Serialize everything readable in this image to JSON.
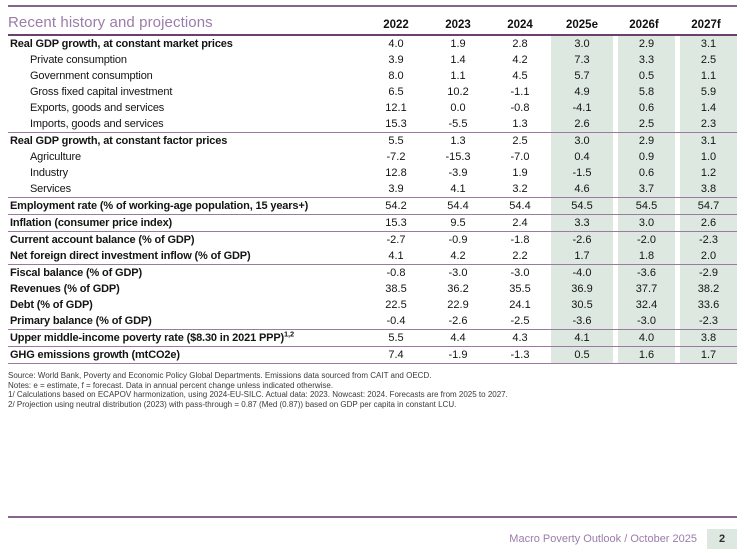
{
  "page": {
    "title": "Recent history and projections",
    "footer_text": "Macro Poverty Outlook / October 2025",
    "page_number": "2"
  },
  "colors": {
    "accent_purple": "#9b7caa",
    "rule_purple": "#86648c",
    "forecast_green": "#dce8e0"
  },
  "table": {
    "columns": [
      "2022",
      "2023",
      "2024",
      "2025e",
      "2026f",
      "2027f"
    ],
    "forecast_columns_start_index": 3,
    "rows": [
      {
        "label": "Real GDP growth, at constant market prices",
        "bold": true,
        "indent": false,
        "sep": false,
        "values": [
          "4.0",
          "1.9",
          "2.8",
          "3.0",
          "2.9",
          "3.1"
        ]
      },
      {
        "label": "Private consumption",
        "bold": false,
        "indent": true,
        "sep": false,
        "values": [
          "3.9",
          "1.4",
          "4.2",
          "7.3",
          "3.3",
          "2.5"
        ]
      },
      {
        "label": "Government consumption",
        "bold": false,
        "indent": true,
        "sep": false,
        "values": [
          "8.0",
          "1.1",
          "4.5",
          "5.7",
          "0.5",
          "1.1"
        ]
      },
      {
        "label": "Gross fixed capital investment",
        "bold": false,
        "indent": true,
        "sep": false,
        "values": [
          "6.5",
          "10.2",
          "-1.1",
          "4.9",
          "5.8",
          "5.9"
        ]
      },
      {
        "label": "Exports, goods and services",
        "bold": false,
        "indent": true,
        "sep": false,
        "values": [
          "12.1",
          "0.0",
          "-0.8",
          "-4.1",
          "0.6",
          "1.4"
        ]
      },
      {
        "label": "Imports, goods and services",
        "bold": false,
        "indent": true,
        "sep": false,
        "values": [
          "15.3",
          "-5.5",
          "1.3",
          "2.6",
          "2.5",
          "2.3"
        ]
      },
      {
        "label": "Real GDP growth, at constant factor prices",
        "bold": true,
        "indent": false,
        "sep": true,
        "values": [
          "5.5",
          "1.3",
          "2.5",
          "3.0",
          "2.9",
          "3.1"
        ]
      },
      {
        "label": "Agriculture",
        "bold": false,
        "indent": true,
        "sep": false,
        "values": [
          "-7.2",
          "-15.3",
          "-7.0",
          "0.4",
          "0.9",
          "1.0"
        ]
      },
      {
        "label": "Industry",
        "bold": false,
        "indent": true,
        "sep": false,
        "values": [
          "12.8",
          "-3.9",
          "1.9",
          "-1.5",
          "0.6",
          "1.2"
        ]
      },
      {
        "label": "Services",
        "bold": false,
        "indent": true,
        "sep": false,
        "values": [
          "3.9",
          "4.1",
          "3.2",
          "4.6",
          "3.7",
          "3.8"
        ]
      },
      {
        "label": "Employment rate (% of working-age population, 15 years+)",
        "bold": true,
        "indent": false,
        "sep": true,
        "values": [
          "54.2",
          "54.4",
          "54.4",
          "54.5",
          "54.5",
          "54.7"
        ]
      },
      {
        "label": "Inflation (consumer price index)",
        "bold": true,
        "indent": false,
        "sep": true,
        "values": [
          "15.3",
          "9.5",
          "2.4",
          "3.3",
          "3.0",
          "2.6"
        ]
      },
      {
        "label": "Current account balance (% of GDP)",
        "bold": true,
        "indent": false,
        "sep": true,
        "values": [
          "-2.7",
          "-0.9",
          "-1.8",
          "-2.6",
          "-2.0",
          "-2.3"
        ]
      },
      {
        "label": "Net foreign direct investment inflow (% of GDP)",
        "bold": true,
        "indent": false,
        "sep": false,
        "values": [
          "4.1",
          "4.2",
          "2.2",
          "1.7",
          "1.8",
          "2.0"
        ]
      },
      {
        "label": "Fiscal balance (% of GDP)",
        "bold": true,
        "indent": false,
        "sep": true,
        "values": [
          "-0.8",
          "-3.0",
          "-3.0",
          "-4.0",
          "-3.6",
          "-2.9"
        ]
      },
      {
        "label": "Revenues (% of GDP)",
        "bold": true,
        "indent": false,
        "sep": false,
        "values": [
          "38.5",
          "36.2",
          "35.5",
          "36.9",
          "37.7",
          "38.2"
        ]
      },
      {
        "label": "Debt (% of GDP)",
        "bold": true,
        "indent": false,
        "sep": false,
        "values": [
          "22.5",
          "22.9",
          "24.1",
          "30.5",
          "32.4",
          "33.6"
        ]
      },
      {
        "label": "Primary balance (% of GDP)",
        "bold": true,
        "indent": false,
        "sep": false,
        "values": [
          "-0.4",
          "-2.6",
          "-2.5",
          "-3.6",
          "-3.0",
          "-2.3"
        ]
      },
      {
        "label": "Upper middle-income poverty rate ($8.30 in 2021 PPP)",
        "sup": "1,2",
        "bold": true,
        "indent": false,
        "sep": true,
        "values": [
          "5.5",
          "4.4",
          "4.3",
          "4.1",
          "4.0",
          "3.8"
        ]
      },
      {
        "label": "GHG emissions growth (mtCO2e)",
        "bold": true,
        "indent": false,
        "sep": true,
        "values": [
          "7.4",
          "-1.9",
          "-1.3",
          "0.5",
          "1.6",
          "1.7"
        ]
      }
    ]
  },
  "footnotes": [
    "Source: World Bank, Poverty and Economic Policy Global Departments. Emissions data sourced from CAIT and OECD.",
    "Notes: e = estimate, f = forecast. Data in annual percent change unless indicated otherwise.",
    "1/ Calculations based on ECAPOV harmonization, using 2024-EU-SILC. Actual data: 2023. Nowcast: 2024. Forecasts are from 2025 to 2027.",
    "2/ Projection using neutral distribution (2023) with pass-through = 0.87 (Med (0.87)) based on GDP per capita in constant LCU."
  ]
}
